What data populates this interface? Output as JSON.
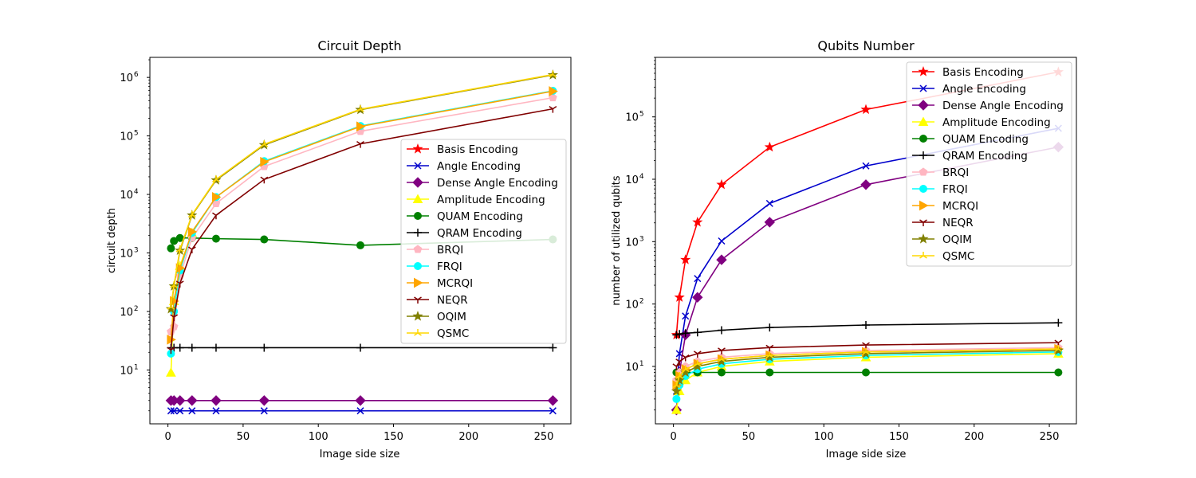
{
  "chart_data": [
    {
      "type": "line",
      "title": "Circuit Depth",
      "xlabel": "Image side size",
      "ylabel": "circuit depth",
      "xscale": "linear",
      "yscale": "log",
      "xlim": [
        -12,
        268
      ],
      "ylim": [
        1.2,
        2200000
      ],
      "x_ticks": [
        {
          "v": 0,
          "label": "0"
        },
        {
          "v": 50,
          "label": "50"
        },
        {
          "v": 100,
          "label": "100"
        },
        {
          "v": 150,
          "label": "150"
        },
        {
          "v": 200,
          "label": "200"
        },
        {
          "v": 250,
          "label": "250"
        }
      ],
      "y_ticks": [
        {
          "v": 10,
          "base": "10",
          "exp": "1"
        },
        {
          "v": 100,
          "base": "10",
          "exp": "2"
        },
        {
          "v": 1000,
          "base": "10",
          "exp": "3"
        },
        {
          "v": 10000,
          "base": "10",
          "exp": "4"
        },
        {
          "v": 100000,
          "base": "10",
          "exp": "5"
        },
        {
          "v": 1000000,
          "base": "10",
          "exp": "6"
        }
      ],
      "legend_position": "center-right",
      "x": [
        2,
        4,
        8,
        16,
        32,
        64,
        128,
        256
      ],
      "series": [
        {
          "name": "Basis Encoding",
          "color": "#ff0000",
          "marker": "star",
          "values": [
            null,
            null,
            null,
            null,
            null,
            null,
            null,
            null
          ]
        },
        {
          "name": "Angle Encoding",
          "color": "#0000cc",
          "marker": "x",
          "values": [
            2,
            2,
            2,
            2,
            2,
            2,
            2,
            2
          ]
        },
        {
          "name": "Dense Angle Encoding",
          "color": "#800080",
          "marker": "diamond",
          "values": [
            3,
            3,
            3,
            3,
            3,
            3,
            3,
            3
          ]
        },
        {
          "name": "Amplitude Encoding",
          "color": "#ffff00",
          "marker": "triangle",
          "values": [
            9,
            150,
            600,
            2200,
            null,
            null,
            null,
            null
          ]
        },
        {
          "name": "QUAM Encoding",
          "color": "#008000",
          "marker": "circle",
          "values": [
            1200,
            1600,
            1800,
            1800,
            1750,
            1700,
            1350,
            1700
          ]
        },
        {
          "name": "QRAM Encoding",
          "color": "#000000",
          "marker": "plus",
          "values": [
            24,
            24,
            24,
            24,
            24,
            24,
            24,
            24
          ]
        },
        {
          "name": "BRQI",
          "color": "#ffb6c1",
          "marker": "pentagon",
          "values": [
            45,
            55,
            400,
            1800,
            7000,
            30000,
            120000,
            450000
          ]
        },
        {
          "name": "FRQI",
          "color": "#00ffff",
          "marker": "circle",
          "values": [
            19,
            100,
            500,
            2200,
            9000,
            37000,
            148000,
            590000
          ]
        },
        {
          "name": "MCRQI",
          "color": "#ffa500",
          "marker": "triangle-right",
          "values": [
            33,
            150,
            550,
            2300,
            9000,
            36000,
            145000,
            580000
          ]
        },
        {
          "name": "NEQR",
          "color": "#800000",
          "marker": "tri-down",
          "values": [
            22,
            80,
            300,
            1150,
            4400,
            18000,
            73000,
            290000
          ]
        },
        {
          "name": "OQIM",
          "color": "#808000",
          "marker": "star",
          "values": [
            110,
            270,
            1100,
            4400,
            17500,
            70000,
            280000,
            1100000
          ]
        },
        {
          "name": "QSMC",
          "color": "#ffd700",
          "marker": "tri-up",
          "values": [
            120,
            280,
            1150,
            4500,
            18000,
            72000,
            285000,
            1120000
          ]
        }
      ]
    },
    {
      "type": "line",
      "title": "Qubits Number",
      "xlabel": "Image side size",
      "ylabel": "number of utilized qubits",
      "xscale": "linear",
      "yscale": "log",
      "xlim": [
        -12,
        268
      ],
      "ylim": [
        1.2,
        900000
      ],
      "x_ticks": [
        {
          "v": 0,
          "label": "0"
        },
        {
          "v": 50,
          "label": "50"
        },
        {
          "v": 100,
          "label": "100"
        },
        {
          "v": 150,
          "label": "150"
        },
        {
          "v": 200,
          "label": "200"
        },
        {
          "v": 250,
          "label": "250"
        }
      ],
      "y_ticks": [
        {
          "v": 10,
          "base": "10",
          "exp": "1"
        },
        {
          "v": 100,
          "base": "10",
          "exp": "2"
        },
        {
          "v": 1000,
          "base": "10",
          "exp": "3"
        },
        {
          "v": 10000,
          "base": "10",
          "exp": "4"
        },
        {
          "v": 100000,
          "base": "10",
          "exp": "5"
        }
      ],
      "legend_position": "upper-right",
      "x": [
        2,
        4,
        8,
        16,
        32,
        64,
        128,
        256
      ],
      "series": [
        {
          "name": "Basis Encoding",
          "color": "#ff0000",
          "marker": "star",
          "values": [
            32,
            128,
            512,
            2048,
            8192,
            32768,
            131072,
            524288
          ]
        },
        {
          "name": "Angle Encoding",
          "color": "#0000cc",
          "marker": "x",
          "values": [
            4,
            16,
            64,
            256,
            1024,
            4096,
            16384,
            65536
          ]
        },
        {
          "name": "Dense Angle Encoding",
          "color": "#800080",
          "marker": "diamond",
          "values": [
            2,
            8,
            32,
            128,
            512,
            2048,
            8192,
            32768
          ]
        },
        {
          "name": "Amplitude Encoding",
          "color": "#ffff00",
          "marker": "triangle",
          "values": [
            2,
            4,
            6,
            8,
            10,
            12,
            14,
            16
          ]
        },
        {
          "name": "QUAM Encoding",
          "color": "#008000",
          "marker": "circle",
          "values": [
            8,
            8,
            8,
            8,
            8,
            8,
            8,
            8
          ]
        },
        {
          "name": "QRAM Encoding",
          "color": "#000000",
          "marker": "plus",
          "values": [
            32,
            33,
            34,
            35,
            38,
            42,
            46,
            50
          ]
        },
        {
          "name": "BRQI",
          "color": "#ffb6c1",
          "marker": "pentagon",
          "values": [
            6,
            8,
            10,
            12,
            14,
            16,
            18,
            20
          ]
        },
        {
          "name": "FRQI",
          "color": "#00ffff",
          "marker": "circle",
          "values": [
            3,
            5,
            7,
            9,
            11,
            13,
            15,
            17
          ]
        },
        {
          "name": "MCRQI",
          "color": "#ffa500",
          "marker": "triangle-right",
          "values": [
            5,
            7,
            9,
            11,
            13,
            15,
            17,
            19
          ]
        },
        {
          "name": "NEQR",
          "color": "#800000",
          "marker": "tri-down",
          "values": [
            10,
            12,
            14,
            16,
            18,
            20,
            22,
            24
          ]
        },
        {
          "name": "OQIM",
          "color": "#808000",
          "marker": "star",
          "values": [
            4,
            6,
            8,
            10,
            12,
            14,
            16,
            18
          ]
        },
        {
          "name": "QSMC",
          "color": "#ffd700",
          "marker": "tri-up",
          "values": [
            5,
            7,
            9,
            11,
            13,
            15,
            17,
            19
          ]
        }
      ]
    }
  ]
}
